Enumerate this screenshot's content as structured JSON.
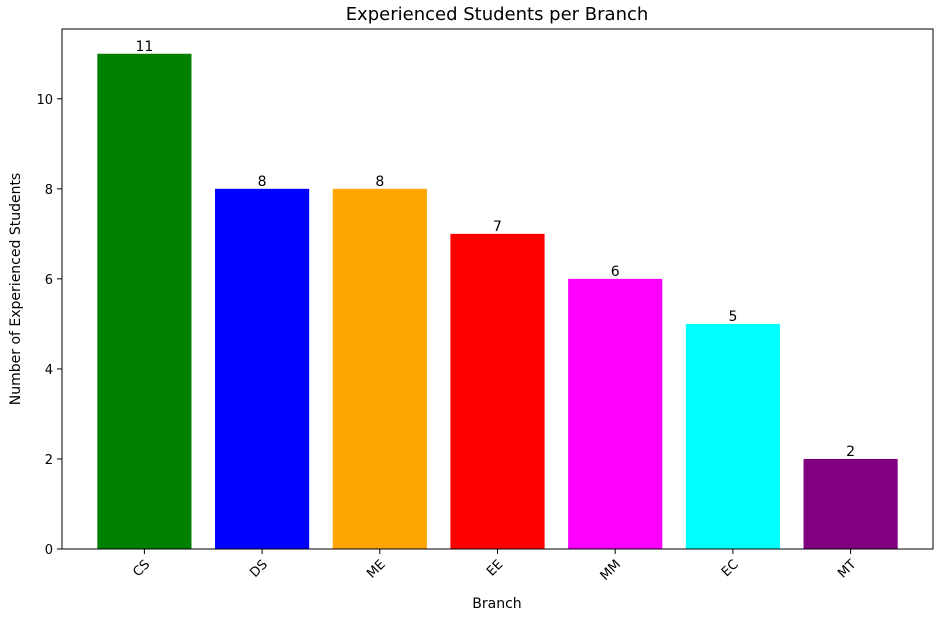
{
  "chart_data": {
    "type": "bar",
    "title": "Experienced Students per Branch",
    "xlabel": "Branch",
    "ylabel": "Number of Experienced Students",
    "categories": [
      "CS",
      "DS",
      "ME",
      "EE",
      "MM",
      "EC",
      "MT"
    ],
    "values": [
      11,
      8,
      8,
      7,
      6,
      5,
      2
    ],
    "colors": [
      "#008000",
      "#0000ff",
      "#ffa500",
      "#ff0000",
      "#ff00ff",
      "#00ffff",
      "#800080"
    ],
    "ylim": [
      0,
      11.55
    ],
    "yticks": [
      0,
      2,
      4,
      6,
      8,
      10
    ],
    "grid": false,
    "legend": "none"
  }
}
